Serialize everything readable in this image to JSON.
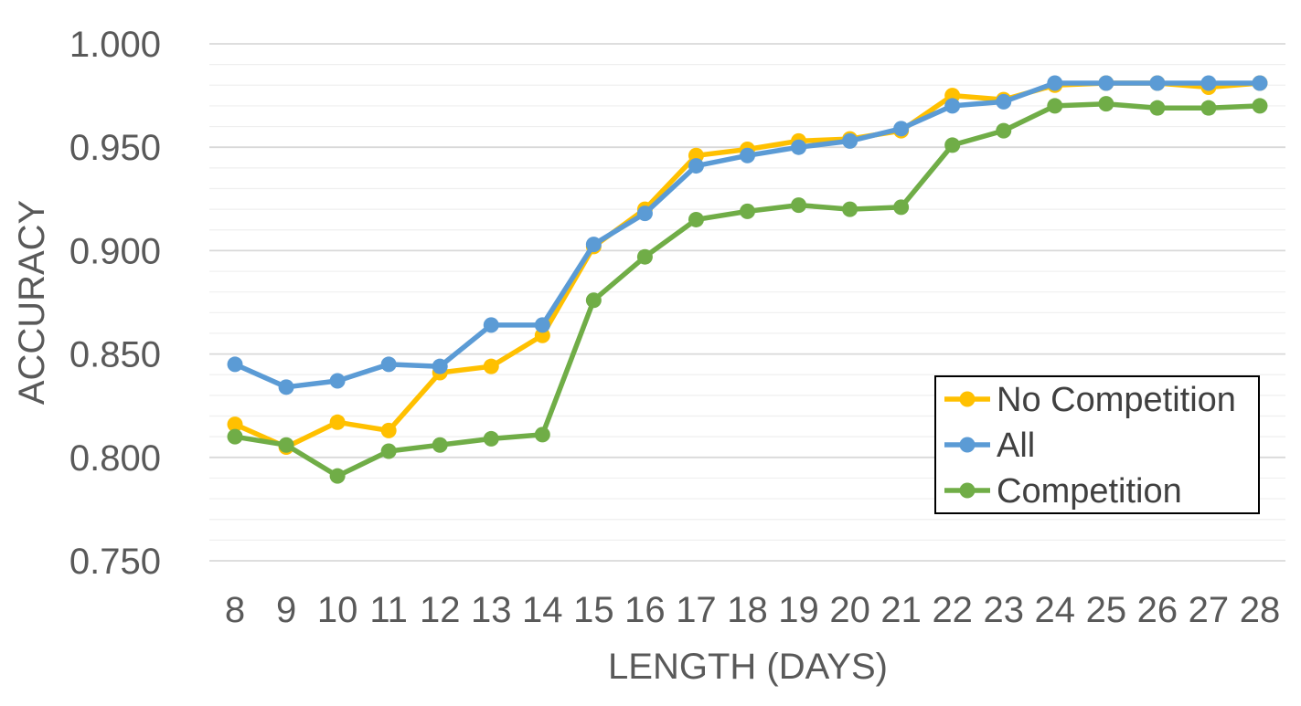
{
  "chart_data": {
    "type": "line",
    "title": "",
    "xlabel": "LENGTH (DAYS)",
    "ylabel": "ACCURACY",
    "ylim": [
      0.75,
      1.0
    ],
    "y_ticks": [
      "0.750",
      "0.800",
      "0.850",
      "0.900",
      "0.950",
      "1.000"
    ],
    "y_tick_values": [
      0.75,
      0.8,
      0.85,
      0.9,
      0.95,
      1.0
    ],
    "y_minor_step": 0.01,
    "grid": true,
    "legend_position": "bottom-right",
    "categories": [
      "8",
      "9",
      "10",
      "11",
      "12",
      "13",
      "14",
      "15",
      "16",
      "17",
      "18",
      "19",
      "20",
      "21",
      "22",
      "23",
      "24",
      "25",
      "26",
      "27",
      "28"
    ],
    "series": [
      {
        "name": "No Competition",
        "color": "#FFC000",
        "values": [
          0.816,
          0.805,
          0.817,
          0.813,
          0.841,
          0.844,
          0.859,
          0.902,
          0.92,
          0.946,
          0.949,
          0.953,
          0.954,
          0.958,
          0.975,
          0.973,
          0.98,
          0.981,
          0.981,
          0.979,
          0.981
        ]
      },
      {
        "name": "All",
        "color": "#5B9BD5",
        "values": [
          0.845,
          0.834,
          0.837,
          0.845,
          0.844,
          0.864,
          0.864,
          0.903,
          0.918,
          0.941,
          0.946,
          0.95,
          0.953,
          0.959,
          0.97,
          0.972,
          0.981,
          0.981,
          0.981,
          0.981,
          0.981
        ]
      },
      {
        "name": "Competition",
        "color": "#70AD47",
        "values": [
          0.81,
          0.806,
          0.791,
          0.803,
          0.806,
          0.809,
          0.811,
          0.876,
          0.897,
          0.915,
          0.919,
          0.922,
          0.92,
          0.921,
          0.951,
          0.958,
          0.97,
          0.971,
          0.969,
          0.969,
          0.97
        ]
      }
    ]
  }
}
